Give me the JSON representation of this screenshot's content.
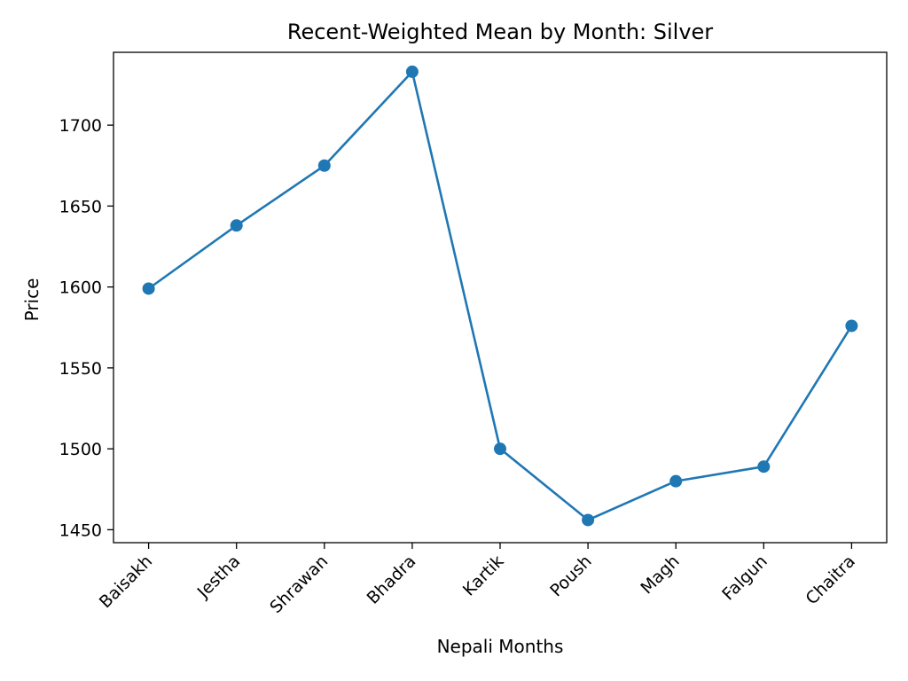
{
  "chart_data": {
    "type": "line",
    "title": "Recent-Weighted Mean by Month: Silver",
    "xlabel": "Nepali Months",
    "ylabel": "Price",
    "categories": [
      "Baisakh",
      "Jestha",
      "Shrawan",
      "Bhadra",
      "Kartik",
      "Poush",
      "Magh",
      "Falgun",
      "Chaitra"
    ],
    "series": [
      {
        "values": [
          1599,
          1638,
          1675,
          1733,
          1500,
          1456,
          1480,
          1489,
          1576
        ],
        "color": "#1f77b4",
        "marker": "circle"
      }
    ],
    "yticks": [
      1450,
      1500,
      1550,
      1600,
      1650,
      1700
    ],
    "ylim": [
      1442,
      1745
    ],
    "grid": false,
    "legend": "none"
  }
}
